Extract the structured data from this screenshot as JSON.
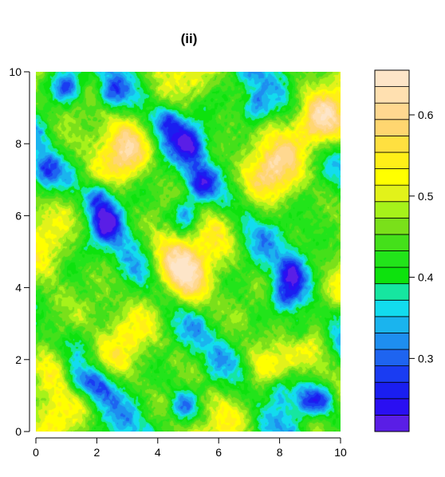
{
  "chart_data": {
    "type": "heatmap",
    "title": "(ii)",
    "xlabel": "",
    "ylabel": "",
    "xlim": [
      0,
      10
    ],
    "ylim": [
      0,
      10
    ],
    "x_ticks": [
      "0",
      "2",
      "4",
      "6",
      "8",
      "10"
    ],
    "y_ticks": [
      "0",
      "2",
      "4",
      "6",
      "8",
      "10"
    ],
    "colorbar": {
      "range": [
        0.21,
        0.655
      ],
      "ticks": [
        "0.3",
        "0.4",
        "0.5",
        "0.6"
      ],
      "tick_values": [
        0.3,
        0.4,
        0.5,
        0.6
      ],
      "colors": [
        "#5a1ee6",
        "#2a0ff2",
        "#1a1ef0",
        "#1a3cf2",
        "#1e64f0",
        "#1e8ef0",
        "#1ab4ee",
        "#12dcee",
        "#16e6a0",
        "#0de20d",
        "#22e41a",
        "#44e01a",
        "#7ae01a",
        "#a6f21a",
        "#e2f21a",
        "#ffff00",
        "#ffef18",
        "#ffe040",
        "#ffd670",
        "#ffd890",
        "#ffe0b0",
        "#fde5c8"
      ]
    },
    "features": {
      "high_peaks": [
        [
          0.3,
          3.1
        ],
        [
          0.7,
          1.6
        ],
        [
          5.1,
          4.0
        ],
        [
          4.4,
          4.8
        ],
        [
          7.9,
          7.2
        ],
        [
          8.9,
          8.6
        ],
        [
          9.6,
          8.4
        ],
        [
          3.0,
          7.8
        ]
      ],
      "low_troughs": [
        [
          2.5,
          9.4
        ],
        [
          4.4,
          8.6
        ],
        [
          5.1,
          8.0
        ],
        [
          5.4,
          6.9
        ],
        [
          4.9,
          6.0
        ],
        [
          2.1,
          6.5
        ],
        [
          2.3,
          5.8
        ],
        [
          8.4,
          4.4
        ],
        [
          8.1,
          3.7
        ],
        [
          8.6,
          2.8
        ],
        [
          1.3,
          1.4
        ],
        [
          2.0,
          1.3
        ],
        [
          8.0,
          1.2
        ],
        [
          8.8,
          0.8
        ],
        [
          9.4,
          0.9
        ],
        [
          0.3,
          7.2
        ],
        [
          1.0,
          9.6
        ],
        [
          4.8,
          0.7
        ],
        [
          7.2,
          9.0
        ]
      ]
    }
  }
}
